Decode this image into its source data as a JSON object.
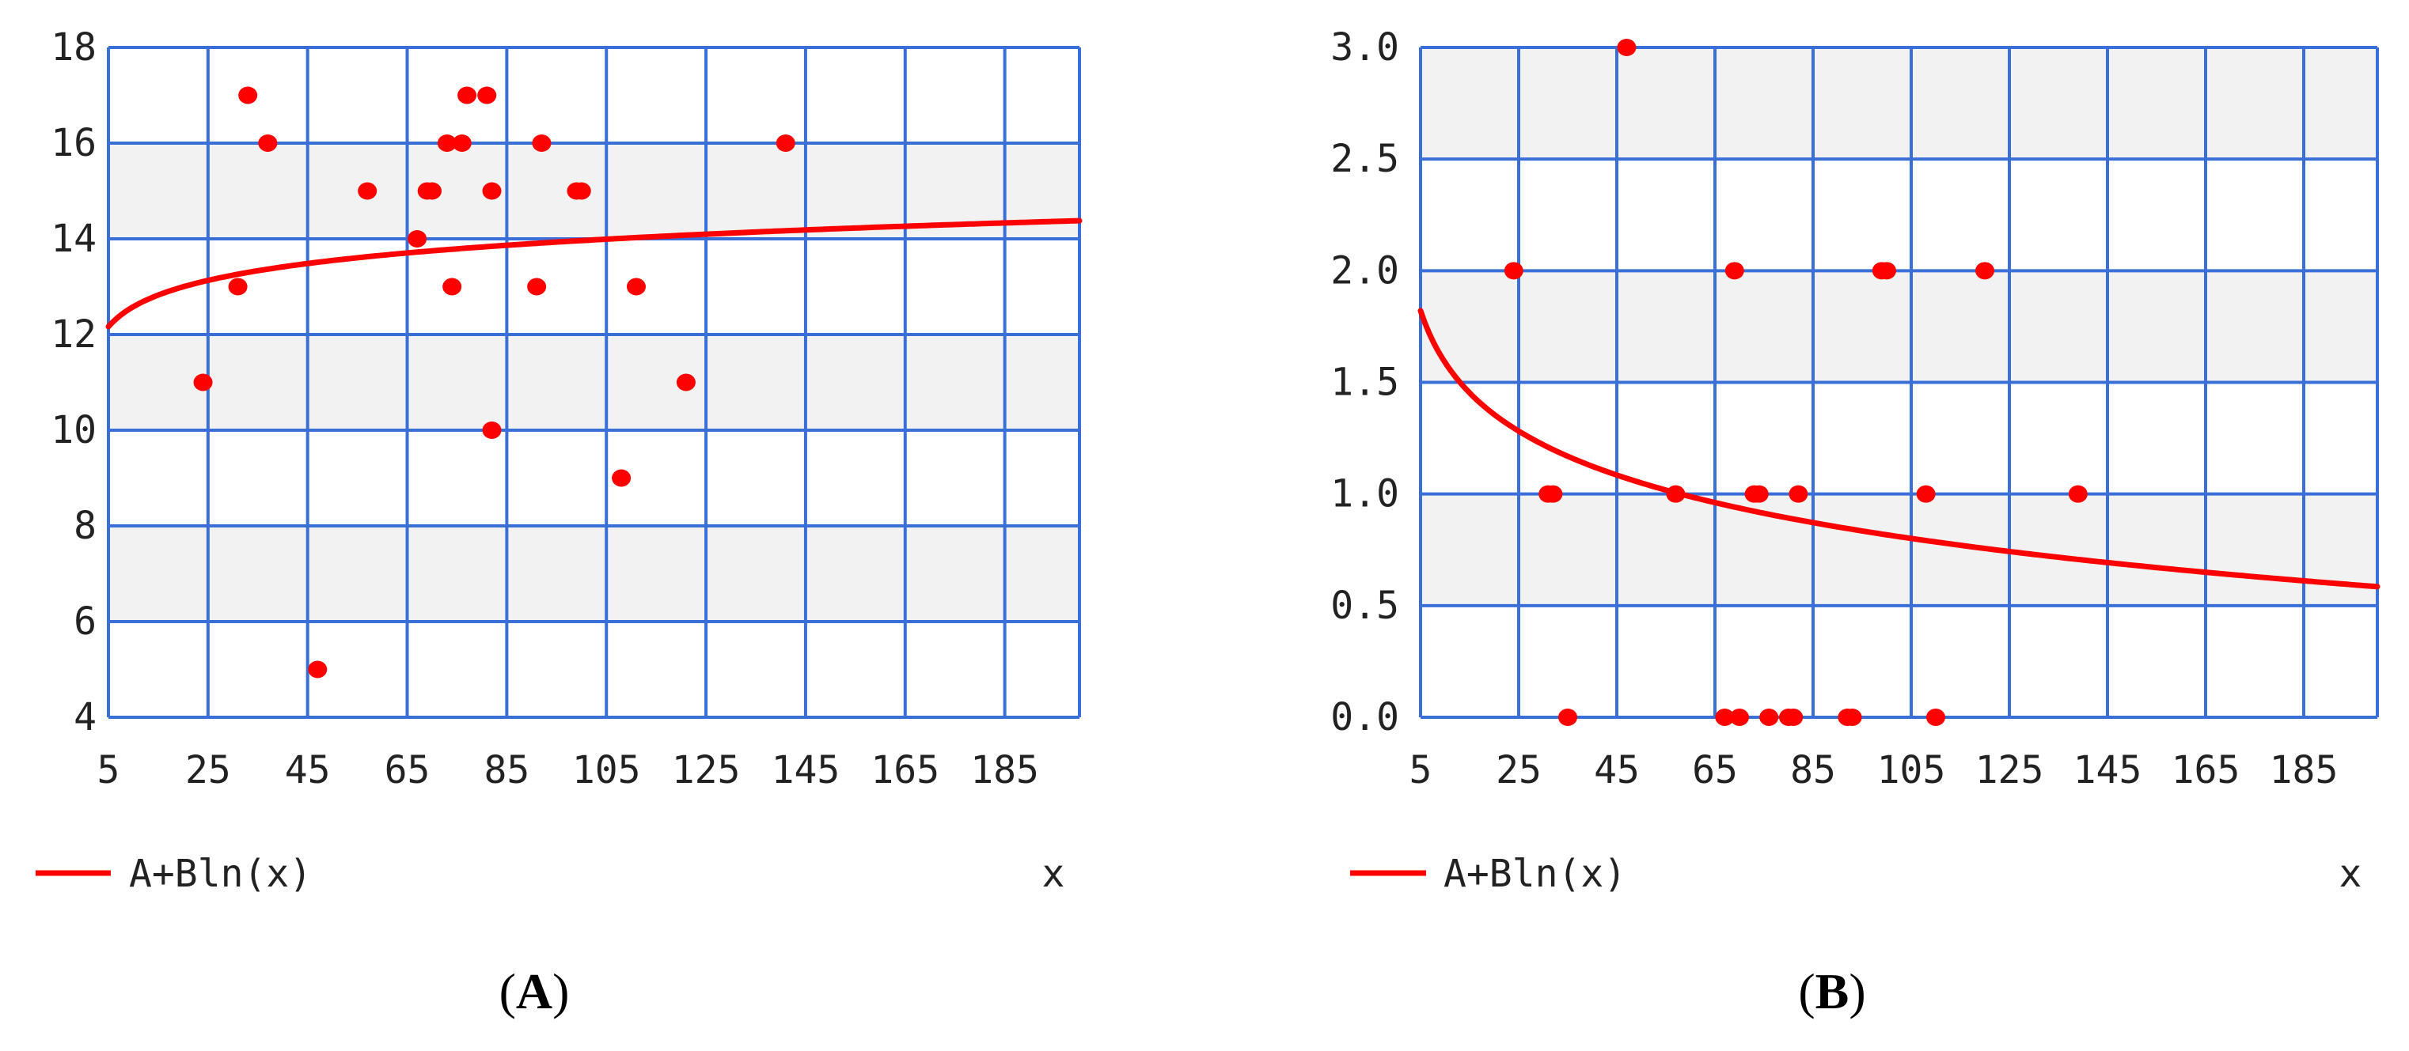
{
  "chart_data": [
    {
      "panel": "A",
      "type": "scatter",
      "title": "",
      "xlabel": "x",
      "ylabel": "",
      "xlim": [
        5,
        200
      ],
      "ylim": [
        4,
        18
      ],
      "xticks": [
        "5",
        "25",
        "45",
        "65",
        "85",
        "105",
        "125",
        "145",
        "165",
        "185"
      ],
      "yticks": [
        "4",
        "6",
        "8",
        "10",
        "12",
        "14",
        "16",
        "18"
      ],
      "grid": true,
      "legend": "bottom-left",
      "legend_label": "A+Bln(x)",
      "panel_label_open": "(",
      "panel_label_letter": "A",
      "panel_label_close": ")",
      "points": [
        [
          24,
          11
        ],
        [
          31,
          13
        ],
        [
          33,
          17
        ],
        [
          37,
          16
        ],
        [
          47,
          5
        ],
        [
          57,
          15
        ],
        [
          67,
          14
        ],
        [
          69,
          15
        ],
        [
          70,
          15
        ],
        [
          73,
          16
        ],
        [
          74,
          13
        ],
        [
          76,
          16
        ],
        [
          77,
          17
        ],
        [
          81,
          17
        ],
        [
          82,
          15
        ],
        [
          82,
          10
        ],
        [
          91,
          13
        ],
        [
          92,
          16
        ],
        [
          99,
          15
        ],
        [
          100,
          15
        ],
        [
          108,
          9
        ],
        [
          111,
          13
        ],
        [
          121,
          11
        ],
        [
          141,
          16
        ]
      ],
      "fit": {
        "model": "A+Bln(x)",
        "A": 11.2,
        "B": 0.6,
        "x_from": 5,
        "x_to": 200
      },
      "colors": {
        "points": "#ff0000",
        "fit": "#ff0000",
        "grid": "#3a6fd8",
        "band": "#f2f2f2"
      }
    },
    {
      "panel": "B",
      "type": "scatter",
      "title": "",
      "xlabel": "x",
      "ylabel": "",
      "xlim": [
        5,
        200
      ],
      "ylim": [
        0.0,
        3.0
      ],
      "xticks": [
        "5",
        "25",
        "45",
        "65",
        "85",
        "105",
        "125",
        "145",
        "165",
        "185"
      ],
      "yticks": [
        "0.0",
        "0.5",
        "1.0",
        "1.5",
        "2.0",
        "2.5",
        "3.0"
      ],
      "grid": true,
      "legend": "bottom-left",
      "legend_label": "A+Bln(x)",
      "panel_label_open": "(",
      "panel_label_letter": "B",
      "panel_label_close": ")",
      "points": [
        [
          24,
          2
        ],
        [
          31,
          1
        ],
        [
          32,
          1
        ],
        [
          35,
          0
        ],
        [
          47,
          3
        ],
        [
          57,
          1
        ],
        [
          67,
          0
        ],
        [
          69,
          2
        ],
        [
          70,
          0
        ],
        [
          73,
          1
        ],
        [
          74,
          1
        ],
        [
          76,
          0
        ],
        [
          80,
          0
        ],
        [
          81,
          0
        ],
        [
          82,
          1
        ],
        [
          92,
          0
        ],
        [
          93,
          0
        ],
        [
          99,
          2
        ],
        [
          100,
          2
        ],
        [
          108,
          1
        ],
        [
          110,
          0
        ],
        [
          120,
          2
        ],
        [
          139,
          1
        ]
      ],
      "fit": {
        "model": "A+Bln(x)",
        "A": 2.36,
        "B": -0.335,
        "x_from": 5,
        "x_to": 200
      },
      "colors": {
        "points": "#ff0000",
        "fit": "#ff0000",
        "grid": "#3a6fd8",
        "band": "#f2f2f2"
      }
    }
  ]
}
